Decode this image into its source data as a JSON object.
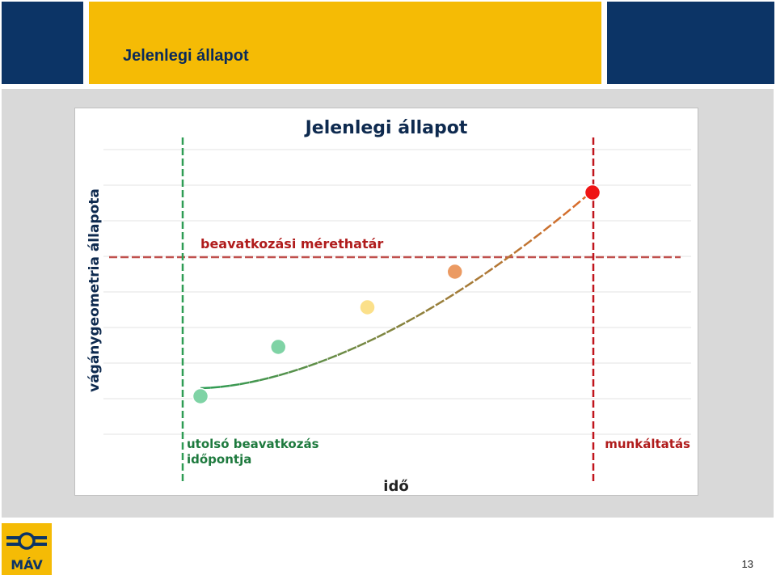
{
  "slide": {
    "header_title": "Jelenlegi állapot",
    "page_number": "13",
    "logo_text": "MÁV",
    "colors": {
      "navy": "#0c3466",
      "yellow": "#f5bb05",
      "panel": "#d9d9d9"
    }
  },
  "chart_data": {
    "type": "scatter",
    "title": "Jelenlegi állapot",
    "xlabel": "idő",
    "ylabel": "vágánygeometria állapota",
    "points": [
      {
        "x": 1,
        "y": 1.0,
        "color": "#7fd3a5"
      },
      {
        "x": 2,
        "y": 2.4,
        "color": "#7fd3a5"
      },
      {
        "x": 3,
        "y": 3.5,
        "color": "#fbe08a"
      },
      {
        "x": 4,
        "y": 4.5,
        "color": "#eb9a62"
      },
      {
        "x": 5,
        "y": 6.0,
        "color": "#ef1414"
      }
    ],
    "trend": {
      "style": "dash-dot",
      "colors": [
        "#2e9c54",
        "#e06b2a"
      ]
    },
    "threshold": {
      "label": "beavatkozási mérethatár",
      "y": 4.7,
      "color": "#c0504d"
    },
    "markers": [
      {
        "x": 0.85,
        "label_lines": [
          "utolsó beavatkozás",
          "időpontja"
        ],
        "color": "#2e9c54"
      },
      {
        "x": 5.0,
        "label_lines": [
          "munkáltatás"
        ],
        "color": "#c0141c"
      }
    ],
    "xlim": [
      0,
      6
    ],
    "ylim": [
      0,
      6.5
    ],
    "grid": true
  }
}
